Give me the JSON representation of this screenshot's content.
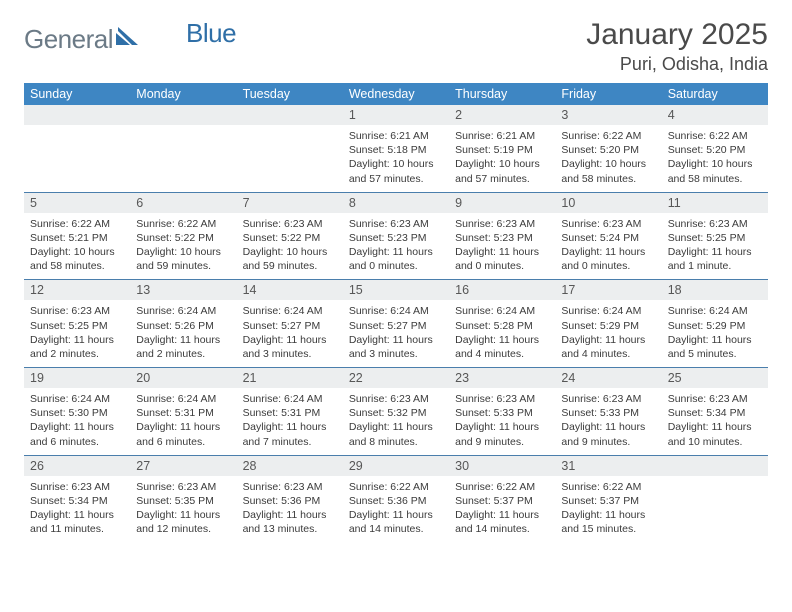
{
  "logo": {
    "text_a": "General",
    "text_b": "Blue"
  },
  "title": "January 2025",
  "location": "Puri, Odisha, India",
  "colors": {
    "header_bg": "#3e86c3",
    "row_sep": "#4a7eac",
    "daynum_bg": "#eceeef",
    "logo_gray": "#6b7a86",
    "logo_blue": "#2f6fa7"
  },
  "weekdays": [
    "Sunday",
    "Monday",
    "Tuesday",
    "Wednesday",
    "Thursday",
    "Friday",
    "Saturday"
  ],
  "weeks": [
    [
      null,
      null,
      null,
      {
        "n": "1",
        "sr": "6:21 AM",
        "ss": "5:18 PM",
        "dl": "10 hours and 57 minutes."
      },
      {
        "n": "2",
        "sr": "6:21 AM",
        "ss": "5:19 PM",
        "dl": "10 hours and 57 minutes."
      },
      {
        "n": "3",
        "sr": "6:22 AM",
        "ss": "5:20 PM",
        "dl": "10 hours and 58 minutes."
      },
      {
        "n": "4",
        "sr": "6:22 AM",
        "ss": "5:20 PM",
        "dl": "10 hours and 58 minutes."
      }
    ],
    [
      {
        "n": "5",
        "sr": "6:22 AM",
        "ss": "5:21 PM",
        "dl": "10 hours and 58 minutes."
      },
      {
        "n": "6",
        "sr": "6:22 AM",
        "ss": "5:22 PM",
        "dl": "10 hours and 59 minutes."
      },
      {
        "n": "7",
        "sr": "6:23 AM",
        "ss": "5:22 PM",
        "dl": "10 hours and 59 minutes."
      },
      {
        "n": "8",
        "sr": "6:23 AM",
        "ss": "5:23 PM",
        "dl": "11 hours and 0 minutes."
      },
      {
        "n": "9",
        "sr": "6:23 AM",
        "ss": "5:23 PM",
        "dl": "11 hours and 0 minutes."
      },
      {
        "n": "10",
        "sr": "6:23 AM",
        "ss": "5:24 PM",
        "dl": "11 hours and 0 minutes."
      },
      {
        "n": "11",
        "sr": "6:23 AM",
        "ss": "5:25 PM",
        "dl": "11 hours and 1 minute."
      }
    ],
    [
      {
        "n": "12",
        "sr": "6:23 AM",
        "ss": "5:25 PM",
        "dl": "11 hours and 2 minutes."
      },
      {
        "n": "13",
        "sr": "6:24 AM",
        "ss": "5:26 PM",
        "dl": "11 hours and 2 minutes."
      },
      {
        "n": "14",
        "sr": "6:24 AM",
        "ss": "5:27 PM",
        "dl": "11 hours and 3 minutes."
      },
      {
        "n": "15",
        "sr": "6:24 AM",
        "ss": "5:27 PM",
        "dl": "11 hours and 3 minutes."
      },
      {
        "n": "16",
        "sr": "6:24 AM",
        "ss": "5:28 PM",
        "dl": "11 hours and 4 minutes."
      },
      {
        "n": "17",
        "sr": "6:24 AM",
        "ss": "5:29 PM",
        "dl": "11 hours and 4 minutes."
      },
      {
        "n": "18",
        "sr": "6:24 AM",
        "ss": "5:29 PM",
        "dl": "11 hours and 5 minutes."
      }
    ],
    [
      {
        "n": "19",
        "sr": "6:24 AM",
        "ss": "5:30 PM",
        "dl": "11 hours and 6 minutes."
      },
      {
        "n": "20",
        "sr": "6:24 AM",
        "ss": "5:31 PM",
        "dl": "11 hours and 6 minutes."
      },
      {
        "n": "21",
        "sr": "6:24 AM",
        "ss": "5:31 PM",
        "dl": "11 hours and 7 minutes."
      },
      {
        "n": "22",
        "sr": "6:23 AM",
        "ss": "5:32 PM",
        "dl": "11 hours and 8 minutes."
      },
      {
        "n": "23",
        "sr": "6:23 AM",
        "ss": "5:33 PM",
        "dl": "11 hours and 9 minutes."
      },
      {
        "n": "24",
        "sr": "6:23 AM",
        "ss": "5:33 PM",
        "dl": "11 hours and 9 minutes."
      },
      {
        "n": "25",
        "sr": "6:23 AM",
        "ss": "5:34 PM",
        "dl": "11 hours and 10 minutes."
      }
    ],
    [
      {
        "n": "26",
        "sr": "6:23 AM",
        "ss": "5:34 PM",
        "dl": "11 hours and 11 minutes."
      },
      {
        "n": "27",
        "sr": "6:23 AM",
        "ss": "5:35 PM",
        "dl": "11 hours and 12 minutes."
      },
      {
        "n": "28",
        "sr": "6:23 AM",
        "ss": "5:36 PM",
        "dl": "11 hours and 13 minutes."
      },
      {
        "n": "29",
        "sr": "6:22 AM",
        "ss": "5:36 PM",
        "dl": "11 hours and 14 minutes."
      },
      {
        "n": "30",
        "sr": "6:22 AM",
        "ss": "5:37 PM",
        "dl": "11 hours and 14 minutes."
      },
      {
        "n": "31",
        "sr": "6:22 AM",
        "ss": "5:37 PM",
        "dl": "11 hours and 15 minutes."
      },
      null
    ]
  ],
  "labels": {
    "sunrise": "Sunrise: ",
    "sunset": "Sunset: ",
    "daylight": "Daylight: "
  }
}
